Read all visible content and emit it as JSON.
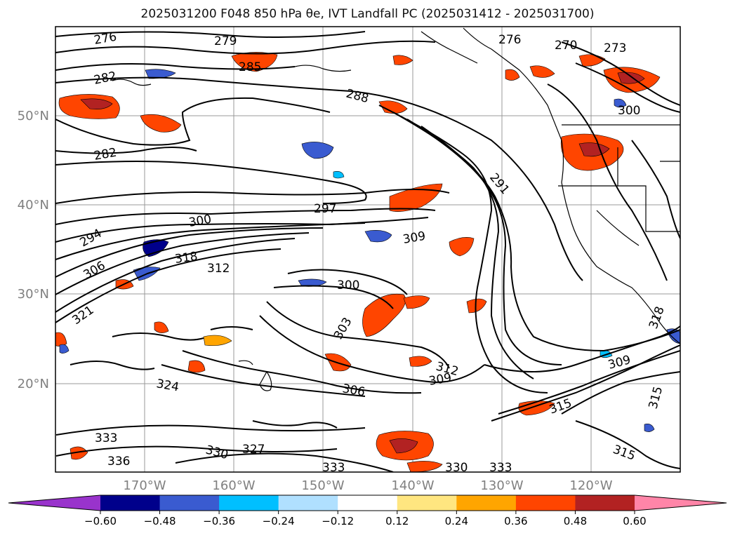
{
  "title": "2025031200 F048 850 hPa θe, IVT Landfall PC (2025031412 - 2025031700)",
  "lat_labels": [
    "50°N",
    "40°N",
    "30°N",
    "20°N"
  ],
  "lon_labels": [
    "170°W",
    "160°W",
    "150°W",
    "140°W",
    "130°W",
    "120°W"
  ],
  "colorbar": {
    "ticks": [
      "−0.60",
      "−0.48",
      "−0.36",
      "−0.24",
      "−0.12",
      "0.12",
      "0.24",
      "0.36",
      "0.48",
      "0.60"
    ],
    "colors": [
      "#9933cc",
      "#00008b",
      "#3a5bd0",
      "#00bfff",
      "#b0e0ff",
      "#ffffff",
      "#ffe680",
      "#ffa500",
      "#ff4500",
      "#b22222",
      "#ff85a8"
    ]
  },
  "theta_labels": [
    "276",
    "279",
    "276",
    "270",
    "273",
    "282",
    "285",
    "288",
    "282",
    "300",
    "291",
    "297",
    "300",
    "294",
    "309",
    "318",
    "312",
    "306",
    "300",
    "321",
    "303",
    "312",
    "309",
    "324",
    "306",
    "309",
    "315",
    "315",
    "333",
    "327",
    "330",
    "336",
    "333",
    "330",
    "333",
    "315",
    "318"
  ]
}
